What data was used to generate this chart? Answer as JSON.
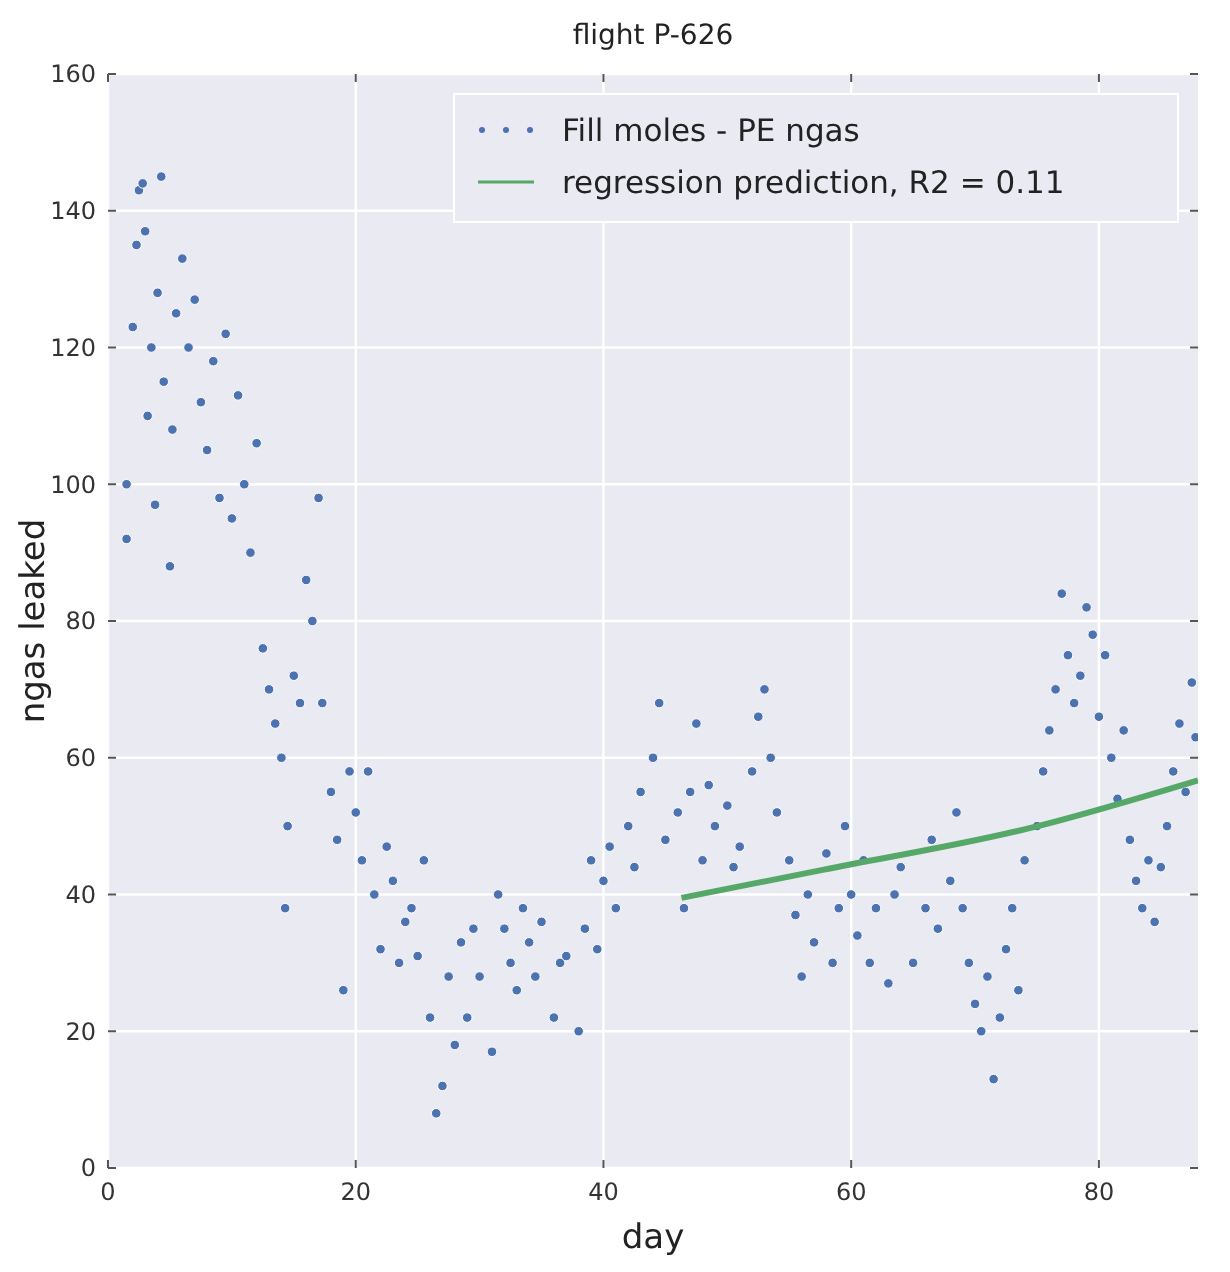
{
  "chart_data": {
    "type": "scatter",
    "title": "flight P-626",
    "xlabel": "day",
    "ylabel": "ngas leaked",
    "xlim": [
      0,
      88
    ],
    "ylim": [
      0,
      160
    ],
    "xticks": [
      0,
      20,
      40,
      60,
      80
    ],
    "yticks": [
      0,
      20,
      40,
      60,
      80,
      100,
      120,
      140,
      160
    ],
    "grid": true,
    "legend": "top right",
    "series": [
      {
        "name": "Fill moles - PE ngas",
        "marker": "circle",
        "color": "#4c72b0",
        "x": [
          1.5,
          1.5,
          2,
          2.3,
          2.5,
          2.8,
          3,
          3.2,
          3.5,
          3.8,
          4,
          4.3,
          4.5,
          5,
          5.2,
          5.5,
          6,
          6.5,
          7,
          7.5,
          8,
          8.5,
          9,
          9.5,
          10,
          10.5,
          11,
          11.5,
          12,
          12.5,
          13,
          13.5,
          14,
          14.3,
          14.5,
          15,
          15.5,
          16,
          16.5,
          17,
          17.3,
          18,
          18.5,
          19,
          19.5,
          20,
          20.5,
          21,
          21.5,
          22,
          22.5,
          23,
          23.5,
          24,
          24.5,
          25,
          25.5,
          26,
          26.5,
          27,
          27.5,
          28,
          28.5,
          29,
          29.5,
          30,
          31,
          31.5,
          32,
          32.5,
          33,
          33.5,
          34,
          34.5,
          35,
          36,
          36.5,
          37,
          38,
          38.5,
          39,
          39.5,
          40,
          40.5,
          41,
          42,
          42.5,
          43,
          44,
          44.5,
          45,
          46,
          46.5,
          47,
          47.5,
          48,
          48.5,
          49,
          50,
          50.5,
          51,
          52,
          52.5,
          53,
          53.5,
          54,
          55,
          55.5,
          56,
          56.5,
          57,
          58,
          58.5,
          59,
          59.5,
          60,
          60.5,
          61,
          61.5,
          62,
          63,
          63.5,
          64,
          65,
          66,
          66.5,
          67,
          68,
          68.5,
          69,
          69.5,
          70,
          70.5,
          71,
          71.5,
          72,
          72.5,
          73,
          73.5,
          74,
          75,
          75.5,
          76,
          76.5,
          77,
          77.5,
          78,
          78.5,
          79,
          79.5,
          80,
          80.5,
          81,
          81.5,
          82,
          82.5,
          83,
          83.5,
          84,
          84.5,
          85,
          85.5,
          86,
          86.5,
          87,
          87.5,
          87.8
        ],
        "values": [
          100,
          92,
          123,
          135,
          143,
          144,
          137,
          110,
          120,
          97,
          128,
          145,
          115,
          88,
          108,
          125,
          133,
          120,
          127,
          112,
          105,
          118,
          98,
          122,
          95,
          113,
          100,
          90,
          106,
          76,
          70,
          65,
          60,
          38,
          50,
          72,
          68,
          86,
          80,
          98,
          68,
          55,
          48,
          26,
          58,
          52,
          45,
          58,
          40,
          32,
          47,
          42,
          30,
          36,
          38,
          31,
          45,
          22,
          8,
          12,
          28,
          18,
          33,
          22,
          35,
          28,
          17,
          40,
          35,
          30,
          26,
          38,
          33,
          28,
          36,
          22,
          30,
          31,
          20,
          35,
          45,
          32,
          42,
          47,
          38,
          50,
          44,
          55,
          60,
          68,
          48,
          52,
          38,
          55,
          65,
          45,
          56,
          50,
          53,
          44,
          47,
          58,
          66,
          70,
          60,
          52,
          45,
          37,
          28,
          40,
          33,
          46,
          30,
          38,
          50,
          40,
          34,
          45,
          30,
          38,
          27,
          40,
          44,
          30,
          38,
          48,
          35,
          42,
          52,
          38,
          30,
          24,
          20,
          28,
          13,
          22,
          32,
          38,
          26,
          45,
          50,
          58,
          64,
          70,
          84,
          75,
          68,
          72,
          82,
          78,
          66,
          75,
          60,
          54,
          64,
          48,
          42,
          38,
          45,
          36,
          44,
          50,
          58,
          65,
          55,
          71,
          63
        ]
      },
      {
        "name": "regression prediction, R2 = 0.11",
        "type": "line",
        "marker": "none",
        "color": "#55a868",
        "x": [
          46.3,
          57.7,
          74.4,
          88
        ],
        "values": [
          39.5,
          43.6,
          49.7,
          56.7
        ]
      }
    ]
  }
}
